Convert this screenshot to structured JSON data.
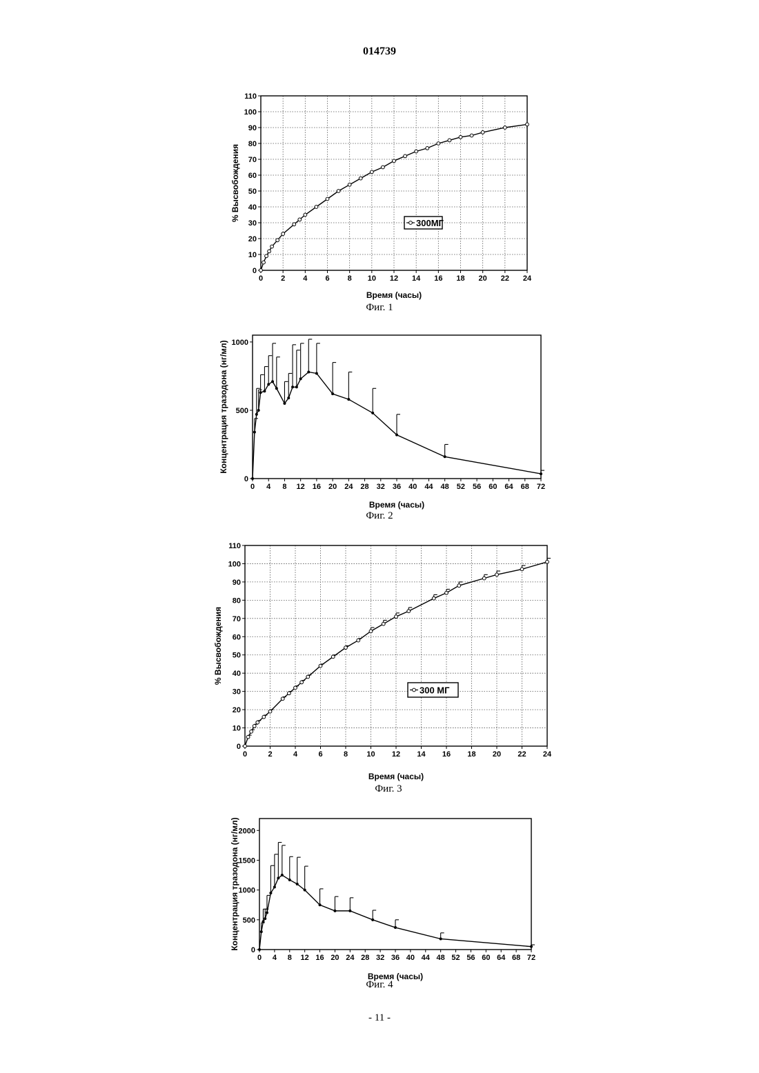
{
  "document": {
    "number": "014739",
    "page_footer": "- 11 -"
  },
  "chart_data": [
    {
      "id": "fig1",
      "type": "line",
      "caption": "Фиг. 1",
      "xlabel": "Время (часы)",
      "ylabel": "% Высвобождения",
      "xlim": [
        0,
        24
      ],
      "ylim": [
        0,
        110
      ],
      "xticks": [
        0,
        2,
        4,
        6,
        8,
        10,
        12,
        14,
        16,
        18,
        20,
        22,
        24
      ],
      "yticks": [
        0,
        10,
        20,
        30,
        40,
        50,
        60,
        70,
        80,
        90,
        100,
        110
      ],
      "grid": true,
      "legend": "center-right",
      "series": [
        {
          "name": "300МГ",
          "marker": "circle",
          "x": [
            0,
            0.25,
            0.5,
            0.75,
            1,
            1.5,
            2,
            3,
            3.5,
            4,
            5,
            6,
            7,
            8,
            9,
            10,
            11,
            12,
            13,
            14,
            15,
            16,
            17,
            18,
            19,
            20,
            22,
            24
          ],
          "y": [
            0,
            5,
            9,
            12,
            15,
            19,
            23,
            29,
            32,
            35,
            40,
            45,
            50,
            54,
            58,
            62,
            65,
            69,
            72,
            75,
            77,
            80,
            82,
            84,
            85,
            87,
            90,
            92
          ]
        }
      ]
    },
    {
      "id": "fig2",
      "type": "line",
      "caption": "Фиг. 2",
      "xlabel": "Время (часы)",
      "ylabel": "Концентрация тразодона (нг/мл)",
      "xlim": [
        0,
        72
      ],
      "ylim": [
        0,
        1050
      ],
      "xticks": [
        0,
        4,
        8,
        12,
        16,
        20,
        24,
        28,
        32,
        36,
        40,
        44,
        48,
        52,
        56,
        60,
        64,
        68,
        72
      ],
      "yticks": [
        0,
        500,
        1000
      ],
      "grid": false,
      "series": [
        {
          "marker": "dot",
          "x": [
            0,
            0.5,
            1,
            1.5,
            2,
            3,
            4,
            5,
            6,
            8,
            9,
            10,
            11,
            12,
            14,
            16,
            20,
            24,
            30,
            36,
            48,
            72
          ],
          "y": [
            0,
            340,
            470,
            500,
            630,
            640,
            690,
            710,
            660,
            550,
            590,
            670,
            670,
            730,
            780,
            770,
            620,
            580,
            480,
            320,
            160,
            35
          ],
          "error": [
            0,
            100,
            190,
            150,
            130,
            180,
            210,
            280,
            230,
            160,
            180,
            310,
            270,
            260,
            240,
            220,
            230,
            200,
            180,
            150,
            90,
            25
          ]
        }
      ]
    },
    {
      "id": "fig3",
      "type": "line",
      "caption": "Фиг. 3",
      "xlabel": "Время (часы)",
      "ylabel": "% Высвобождения",
      "xlim": [
        0,
        24
      ],
      "ylim": [
        0,
        110
      ],
      "xticks": [
        0,
        2,
        4,
        6,
        8,
        10,
        12,
        14,
        16,
        18,
        20,
        22,
        24
      ],
      "yticks": [
        0,
        10,
        20,
        30,
        40,
        50,
        60,
        70,
        80,
        90,
        100,
        110
      ],
      "grid": true,
      "legend": "center-right",
      "series": [
        {
          "name": "300 МГ",
          "marker": "circle",
          "x": [
            0,
            0.25,
            0.5,
            0.75,
            1,
            1.5,
            2,
            3,
            3.5,
            4,
            4.5,
            5,
            6,
            7,
            8,
            9,
            10,
            11,
            12,
            13,
            15,
            16,
            17,
            19,
            20,
            22,
            24
          ],
          "y": [
            0,
            5,
            8,
            11,
            13,
            16,
            19,
            26,
            29,
            32,
            35,
            38,
            44,
            49,
            54,
            58,
            63,
            67,
            71,
            74,
            81,
            84,
            88,
            92,
            94,
            97,
            101
          ],
          "error": [
            0,
            1,
            1,
            1,
            1,
            1,
            1,
            1,
            1,
            1,
            1,
            1,
            1,
            1,
            1,
            1,
            2,
            2,
            2,
            2,
            2,
            2,
            2,
            2,
            2,
            2,
            2
          ]
        }
      ]
    },
    {
      "id": "fig4",
      "type": "line",
      "caption": "Фиг. 4",
      "xlabel": "Время (часы)",
      "ylabel": "Концентрация тразодона (нг/мл)",
      "xlim": [
        0,
        72
      ],
      "ylim": [
        0,
        2200
      ],
      "xticks": [
        0,
        4,
        8,
        12,
        16,
        20,
        24,
        28,
        32,
        36,
        40,
        44,
        48,
        52,
        56,
        60,
        64,
        68,
        72
      ],
      "yticks": [
        0,
        500,
        1000,
        1500,
        2000
      ],
      "grid": false,
      "series": [
        {
          "marker": "dot",
          "x": [
            0,
            0.5,
            1,
            1.5,
            2,
            3,
            4,
            5,
            6,
            8,
            10,
            12,
            16,
            20,
            24,
            30,
            36,
            48,
            72
          ],
          "y": [
            0,
            300,
            470,
            520,
            620,
            950,
            1050,
            1200,
            1250,
            1170,
            1100,
            1000,
            750,
            650,
            650,
            500,
            370,
            180,
            50
          ],
          "error": [
            0,
            150,
            210,
            160,
            290,
            460,
            550,
            600,
            500,
            390,
            450,
            400,
            270,
            240,
            220,
            160,
            130,
            100,
            30
          ]
        }
      ]
    }
  ]
}
